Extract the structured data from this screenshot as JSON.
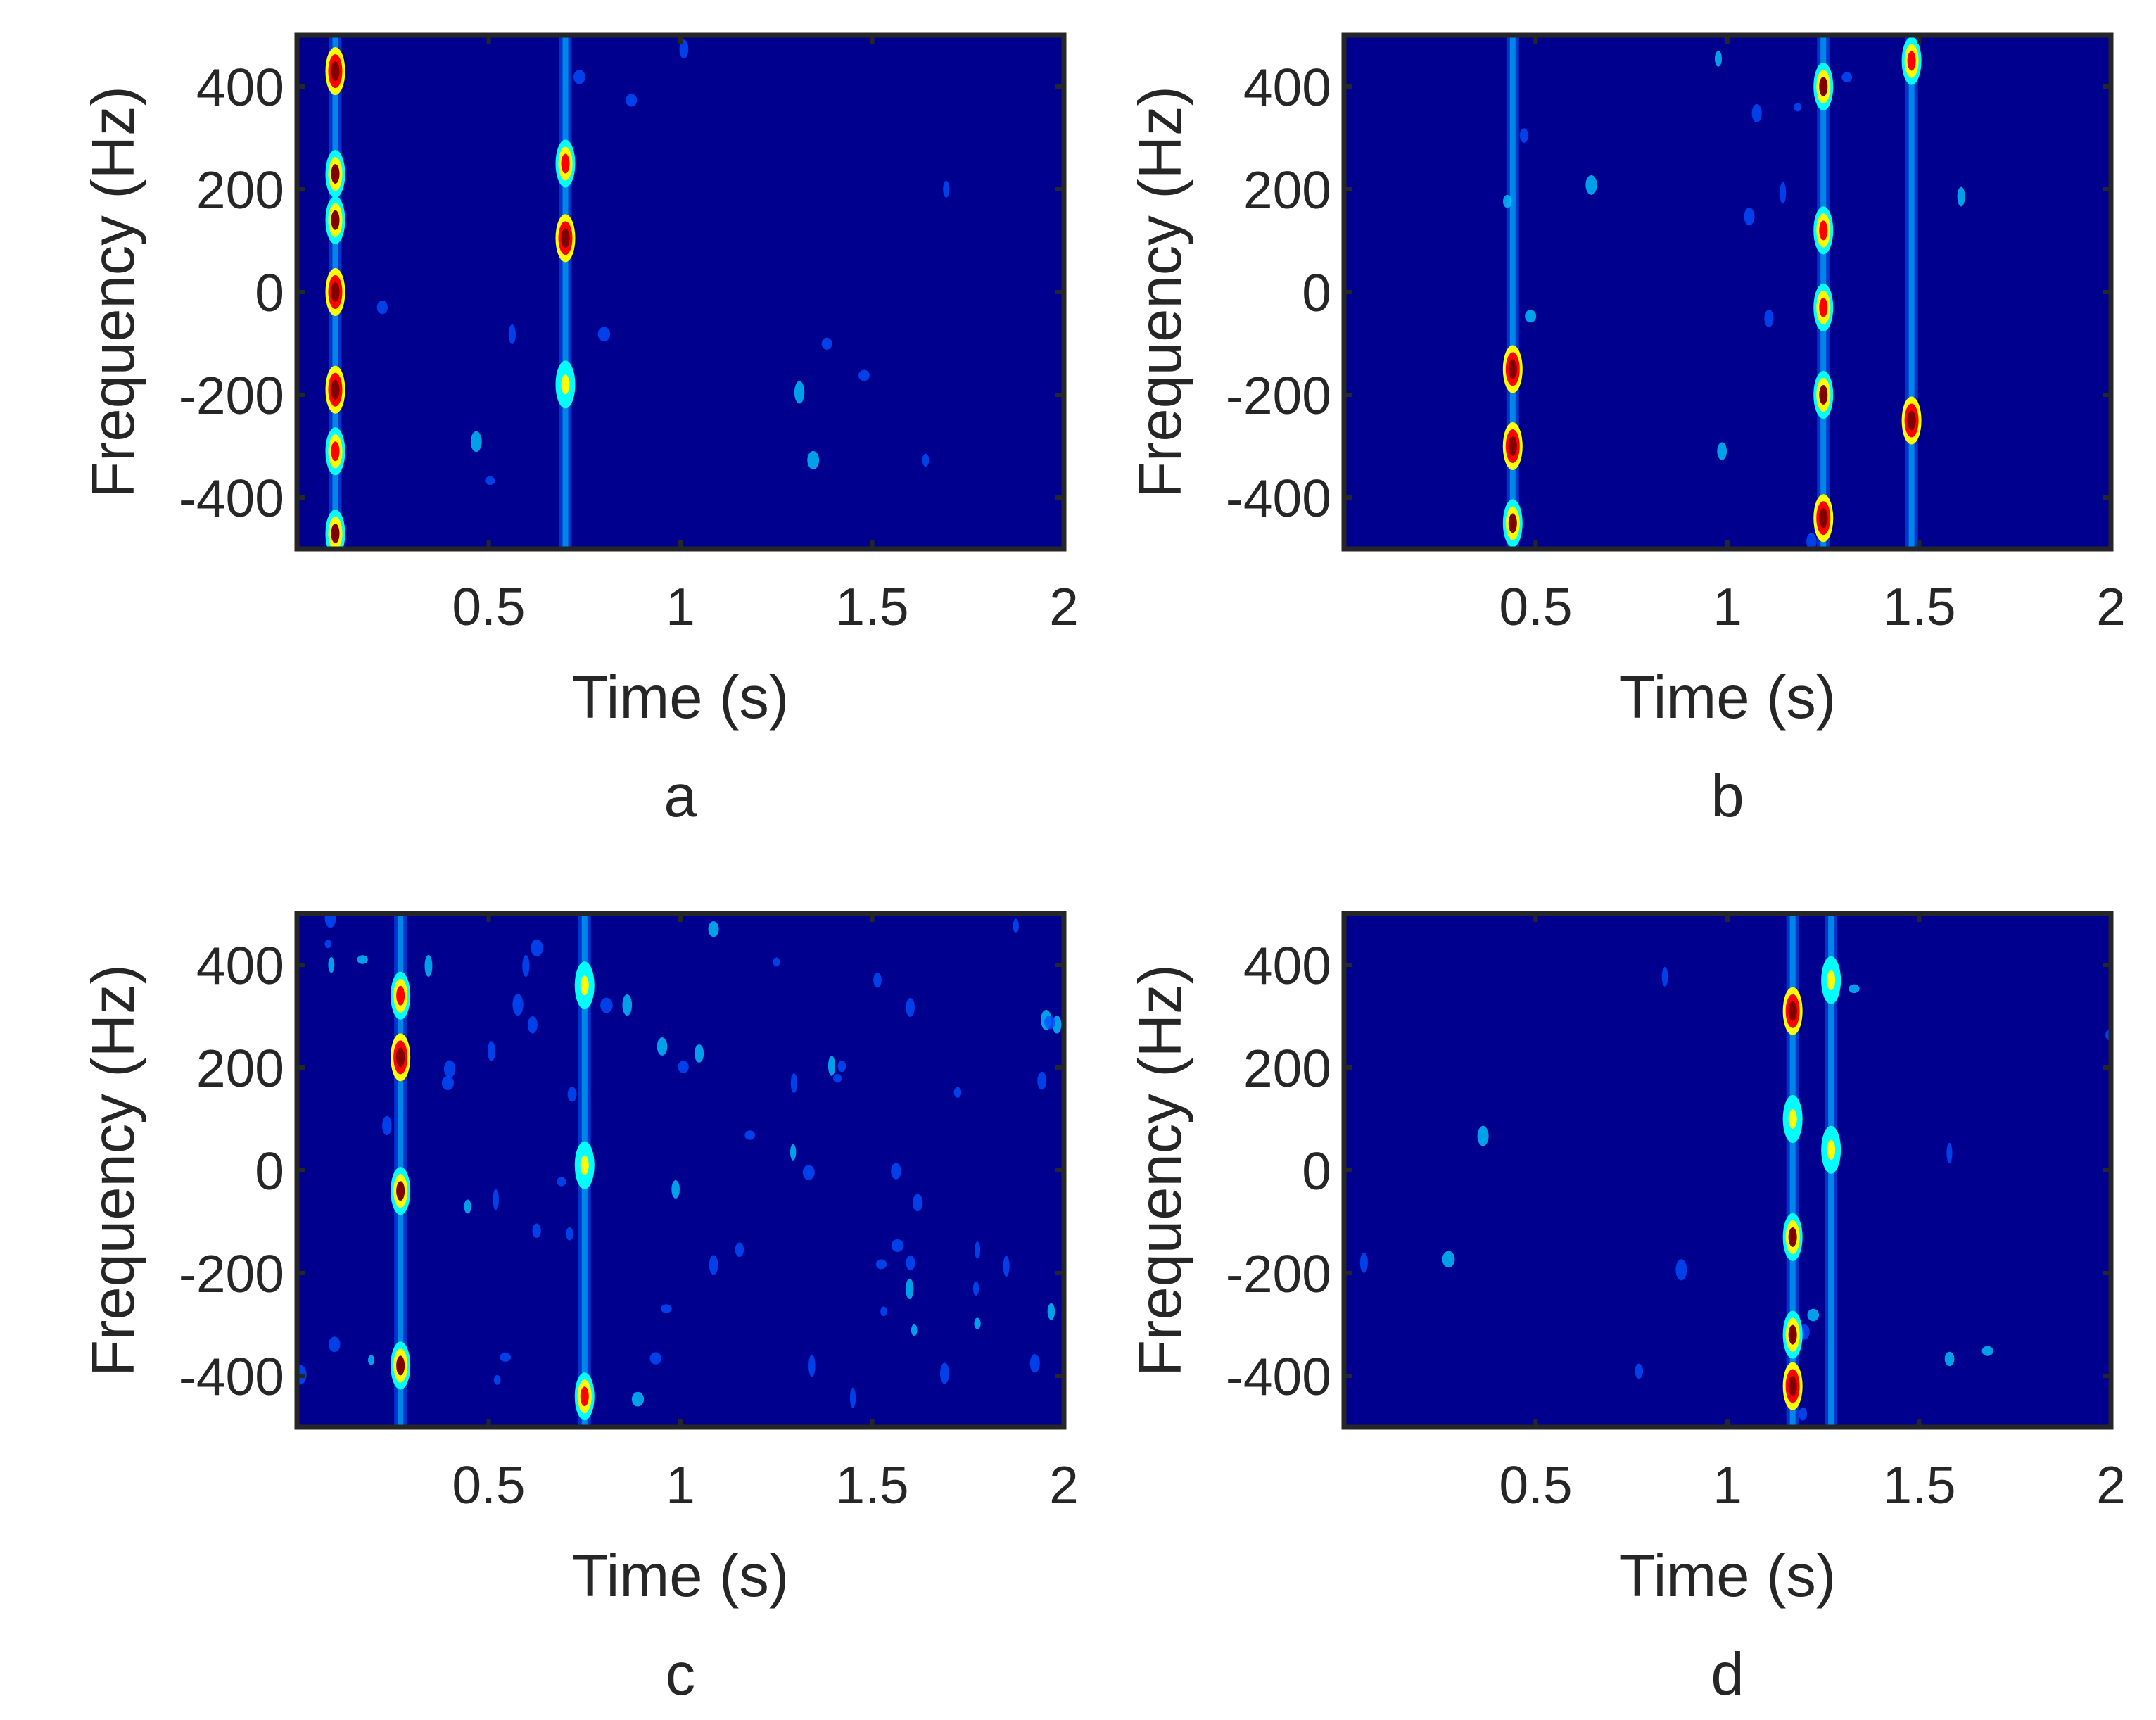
{
  "figure": {
    "colormap": [
      "#00007f",
      "#0000ff",
      "#00ffff",
      "#ffff00",
      "#ff0000",
      "#800000"
    ],
    "background_color": "#00008f",
    "axis_color": "#262626"
  },
  "chart_data": [
    {
      "panel": "a",
      "type": "heatmap",
      "xlabel": "Time (s)",
      "ylabel": "Frequency (Hz)",
      "xlim": [
        0,
        2
      ],
      "ylim": [
        -500,
        500
      ],
      "xticks": [
        0.5,
        1,
        1.5,
        2
      ],
      "xtick_labels": [
        "0.5",
        "1",
        "1.5",
        "2"
      ],
      "yticks": [
        -400,
        -200,
        0,
        200,
        400
      ],
      "ytick_labels": [
        "-400",
        "-200",
        "0",
        "200",
        "400"
      ],
      "features": [
        {
          "t": 0.1,
          "f": 430,
          "intensity": 0.9
        },
        {
          "t": 0.1,
          "f": 230,
          "intensity": 0.85
        },
        {
          "t": 0.1,
          "f": 140,
          "intensity": 0.85
        },
        {
          "t": 0.1,
          "f": 0,
          "intensity": 0.9
        },
        {
          "t": 0.1,
          "f": -190,
          "intensity": 0.9
        },
        {
          "t": 0.1,
          "f": -310,
          "intensity": 0.6
        },
        {
          "t": 0.1,
          "f": -470,
          "intensity": 0.8
        },
        {
          "t": 0.7,
          "f": 250,
          "intensity": 0.75
        },
        {
          "t": 0.7,
          "f": 105,
          "intensity": 0.9
        },
        {
          "t": 0.7,
          "f": -180,
          "intensity": 0.5
        }
      ]
    },
    {
      "panel": "b",
      "type": "heatmap",
      "xlabel": "Time (s)",
      "ylabel": "Frequency (Hz)",
      "xlim": [
        0,
        2
      ],
      "ylim": [
        -500,
        500
      ],
      "xticks": [
        0.5,
        1,
        1.5,
        2
      ],
      "xtick_labels": [
        "0.5",
        "1",
        "1.5",
        "2"
      ],
      "yticks": [
        -400,
        -200,
        0,
        200,
        400
      ],
      "ytick_labels": [
        "-400",
        "-200",
        "0",
        "200",
        "400"
      ],
      "features": [
        {
          "t": 0.44,
          "f": -300,
          "intensity": 0.95
        },
        {
          "t": 0.44,
          "f": -150,
          "intensity": 0.9
        },
        {
          "t": 0.44,
          "f": -450,
          "intensity": 0.85
        },
        {
          "t": 1.25,
          "f": 400,
          "intensity": 0.8
        },
        {
          "t": 1.25,
          "f": 120,
          "intensity": 0.75
        },
        {
          "t": 1.25,
          "f": -30,
          "intensity": 0.75
        },
        {
          "t": 1.25,
          "f": -200,
          "intensity": 0.8
        },
        {
          "t": 1.25,
          "f": -440,
          "intensity": 0.9
        },
        {
          "t": 1.48,
          "f": -250,
          "intensity": 0.95
        },
        {
          "t": 1.48,
          "f": 450,
          "intensity": 0.7
        }
      ]
    },
    {
      "panel": "c",
      "type": "heatmap",
      "xlabel": "Time (s)",
      "ylabel": "Frequency (Hz)",
      "xlim": [
        0,
        2
      ],
      "ylim": [
        -500,
        500
      ],
      "xticks": [
        0.5,
        1,
        1.5,
        2
      ],
      "xtick_labels": [
        "0.5",
        "1",
        "1.5",
        "2"
      ],
      "yticks": [
        -400,
        -200,
        0,
        200,
        400
      ],
      "ytick_labels": [
        "-400",
        "-200",
        "0",
        "200",
        "400"
      ],
      "features": [
        {
          "t": 0.27,
          "f": 220,
          "intensity": 0.9
        },
        {
          "t": 0.27,
          "f": -40,
          "intensity": 0.85
        },
        {
          "t": 0.27,
          "f": -380,
          "intensity": 0.85
        },
        {
          "t": 0.27,
          "f": 340,
          "intensity": 0.7
        },
        {
          "t": 0.75,
          "f": 360,
          "intensity": 0.55
        },
        {
          "t": 0.75,
          "f": -440,
          "intensity": 0.6
        },
        {
          "t": 0.75,
          "f": 10,
          "intensity": 0.5
        }
      ]
    },
    {
      "panel": "d",
      "type": "heatmap",
      "xlabel": "Time (s)",
      "ylabel": "Frequency (Hz)",
      "xlim": [
        0,
        2
      ],
      "ylim": [
        -500,
        500
      ],
      "xticks": [
        0.5,
        1,
        1.5,
        2
      ],
      "xtick_labels": [
        "0.5",
        "1",
        "1.5",
        "2"
      ],
      "yticks": [
        -400,
        -200,
        0,
        200,
        400
      ],
      "ytick_labels": [
        "-400",
        "-200",
        "0",
        "200",
        "400"
      ],
      "features": [
        {
          "t": 1.17,
          "f": 310,
          "intensity": 0.9
        },
        {
          "t": 1.17,
          "f": -130,
          "intensity": 0.85
        },
        {
          "t": 1.17,
          "f": -320,
          "intensity": 0.8
        },
        {
          "t": 1.17,
          "f": -420,
          "intensity": 0.9
        },
        {
          "t": 1.17,
          "f": 100,
          "intensity": 0.55
        },
        {
          "t": 1.27,
          "f": 370,
          "intensity": 0.5
        },
        {
          "t": 1.27,
          "f": 40,
          "intensity": 0.5
        }
      ]
    }
  ]
}
